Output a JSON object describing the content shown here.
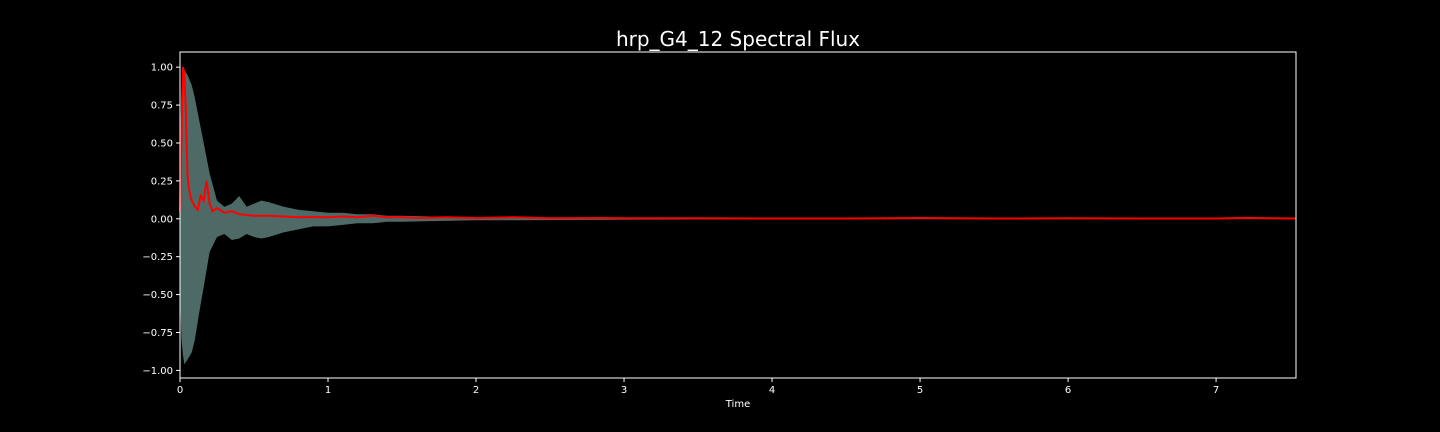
{
  "chart_data": {
    "type": "area",
    "title": "hrp_G4_12 Spectral Flux",
    "xlabel": "Time",
    "ylabel": "",
    "xlim": [
      0,
      7.54
    ],
    "ylim": [
      -1.05,
      1.1
    ],
    "xticks": [
      0,
      1,
      2,
      3,
      4,
      5,
      6,
      7
    ],
    "xtick_labels": [
      "0",
      "1",
      "2",
      "3",
      "4",
      "5",
      "6",
      "7"
    ],
    "yticks": [
      -1.0,
      -0.75,
      -0.5,
      -0.25,
      0.0,
      0.25,
      0.5,
      0.75,
      1.0
    ],
    "ytick_labels": [
      "−1.00",
      "−0.75",
      "−0.50",
      "−0.25",
      "0.00",
      "0.25",
      "0.50",
      "0.75",
      "1.00"
    ],
    "grid": false,
    "series": [
      {
        "kind": "envelope",
        "color": "#5a7d78",
        "x": [
          0,
          0.01,
          0.02,
          0.03,
          0.05,
          0.08,
          0.1,
          0.13,
          0.16,
          0.2,
          0.25,
          0.3,
          0.35,
          0.4,
          0.45,
          0.5,
          0.55,
          0.6,
          0.7,
          0.8,
          0.9,
          1.0,
          1.1,
          1.2,
          1.3,
          1.4,
          1.5,
          1.7,
          2.0,
          2.3,
          2.6,
          3.0,
          3.5,
          4.0,
          5.0,
          6.0,
          7.0,
          7.54
        ],
        "upper": [
          0.5,
          0.85,
          0.9,
          0.98,
          0.95,
          0.88,
          0.8,
          0.65,
          0.5,
          0.3,
          0.12,
          0.08,
          0.1,
          0.15,
          0.08,
          0.1,
          0.12,
          0.11,
          0.08,
          0.06,
          0.05,
          0.04,
          0.04,
          0.03,
          0.03,
          0.02,
          0.02,
          0.015,
          0.01,
          0.01,
          0.008,
          0.006,
          0.005,
          0.004,
          0.003,
          0.003,
          0.002,
          0.002
        ],
        "lower": [
          -0.5,
          -0.8,
          -0.9,
          -0.96,
          -0.93,
          -0.88,
          -0.8,
          -0.62,
          -0.45,
          -0.22,
          -0.12,
          -0.1,
          -0.14,
          -0.13,
          -0.1,
          -0.12,
          -0.13,
          -0.12,
          -0.09,
          -0.07,
          -0.05,
          -0.05,
          -0.04,
          -0.03,
          -0.03,
          -0.02,
          -0.02,
          -0.015,
          -0.01,
          -0.01,
          -0.008,
          -0.006,
          -0.005,
          -0.004,
          -0.003,
          -0.003,
          -0.002,
          -0.002
        ]
      },
      {
        "kind": "line",
        "color": "#ff0000",
        "x": [
          0,
          0.01,
          0.02,
          0.03,
          0.04,
          0.05,
          0.06,
          0.07,
          0.08,
          0.1,
          0.12,
          0.14,
          0.16,
          0.18,
          0.2,
          0.22,
          0.25,
          0.3,
          0.35,
          0.4,
          0.5,
          0.6,
          0.7,
          0.8,
          0.9,
          1.0,
          1.1,
          1.2,
          1.3,
          1.4,
          1.5,
          1.6,
          1.8,
          2.0,
          2.25,
          2.5,
          2.85,
          3.0,
          3.5,
          4.0,
          4.5,
          5.0,
          5.5,
          6.0,
          6.5,
          7.0,
          7.2,
          7.54
        ],
        "y": [
          0.05,
          0.55,
          1.0,
          0.95,
          0.7,
          0.3,
          0.2,
          0.15,
          0.12,
          0.08,
          0.06,
          0.15,
          0.12,
          0.25,
          0.1,
          0.05,
          0.07,
          0.04,
          0.05,
          0.03,
          0.02,
          0.02,
          0.015,
          0.01,
          0.012,
          0.01,
          0.015,
          0.01,
          0.02,
          0.01,
          0.01,
          0.005,
          0.01,
          0.005,
          0.01,
          0.003,
          0.005,
          0.003,
          0.003,
          0.002,
          0.002,
          0.005,
          0.002,
          0.003,
          0.002,
          0.002,
          0.006,
          0.002
        ]
      }
    ]
  }
}
